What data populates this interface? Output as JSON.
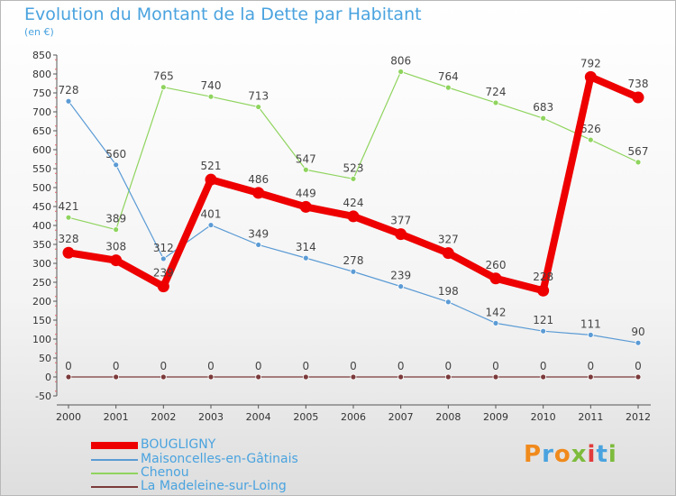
{
  "title": "Evolution du Montant de la Dette par Habitant",
  "subtitle": "(en €)",
  "brand": {
    "text": "Proxiti",
    "colors": [
      "#f08a1c",
      "#4aa3df",
      "#f08a1c",
      "#7dbb3c",
      "#e23b3b",
      "#4aa3df",
      "#7dbb3c"
    ]
  },
  "chart_data": {
    "type": "line",
    "x": [
      "2000",
      "2001",
      "2002",
      "2003",
      "2004",
      "2005",
      "2006",
      "2007",
      "2008",
      "2009",
      "2010",
      "2011",
      "2012"
    ],
    "ylim": [
      -50,
      850
    ],
    "ytick_step": 50,
    "grid": false,
    "legend_position": "bottom-left",
    "series": [
      {
        "name": "Chenou",
        "color": "#8fd45e",
        "values": [
          421,
          389,
          765,
          740,
          713,
          547,
          523,
          806,
          764,
          724,
          683,
          626,
          567
        ]
      },
      {
        "name": "Maisoncelles-en-Gâtinais",
        "color": "#5b9bd5",
        "values": [
          728,
          560,
          312,
          401,
          349,
          314,
          278,
          239,
          198,
          142,
          121,
          111,
          90
        ]
      },
      {
        "name": "La Madeleine-sur-Loing",
        "color": "#7b3a3a",
        "values": [
          0,
          0,
          0,
          0,
          0,
          0,
          0,
          0,
          0,
          0,
          0,
          0,
          0
        ]
      },
      {
        "name": "BOUGLIGNY",
        "color": "#ee0000",
        "values": [
          328,
          308,
          239,
          521,
          486,
          449,
          424,
          377,
          327,
          260,
          228,
          792,
          738
        ]
      }
    ]
  },
  "legend": [
    {
      "label": "BOUGLIGNY",
      "color": "#ee0000"
    },
    {
      "label": "Maisoncelles-en-Gâtinais",
      "color": "#5b9bd5"
    },
    {
      "label": "Chenou",
      "color": "#8fd45e"
    },
    {
      "label": "La Madeleine-sur-Loing",
      "color": "#7b3a3a"
    }
  ]
}
